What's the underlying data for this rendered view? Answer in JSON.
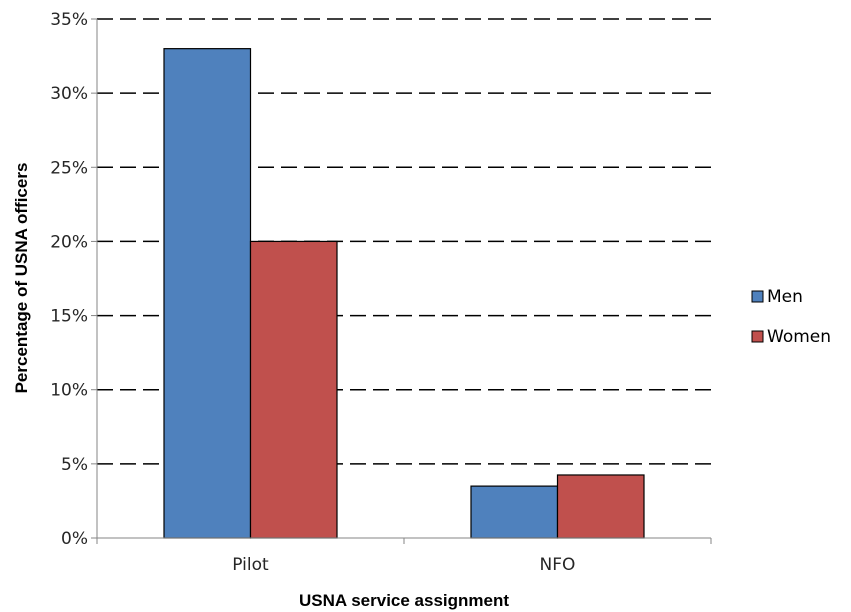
{
  "chart_data": {
    "type": "bar",
    "categories": [
      "Pilot",
      "NFO"
    ],
    "series": [
      {
        "name": "Men",
        "values": [
          33.0,
          3.5
        ],
        "color": "#4F81BD"
      },
      {
        "name": "Women",
        "values": [
          20.0,
          4.25
        ],
        "color": "#C0504D"
      }
    ],
    "xlabel": "USNA service assignment",
    "ylabel": "Percentage of USNA officers",
    "ylim": [
      0,
      35
    ],
    "yticks": [
      0,
      5,
      10,
      15,
      20,
      25,
      30,
      35
    ],
    "ytick_labels": [
      "0%",
      "5%",
      "10%",
      "15%",
      "20%",
      "25%",
      "30%",
      "35%"
    ],
    "grid": "dashed horizontal",
    "legend_position": "right"
  }
}
